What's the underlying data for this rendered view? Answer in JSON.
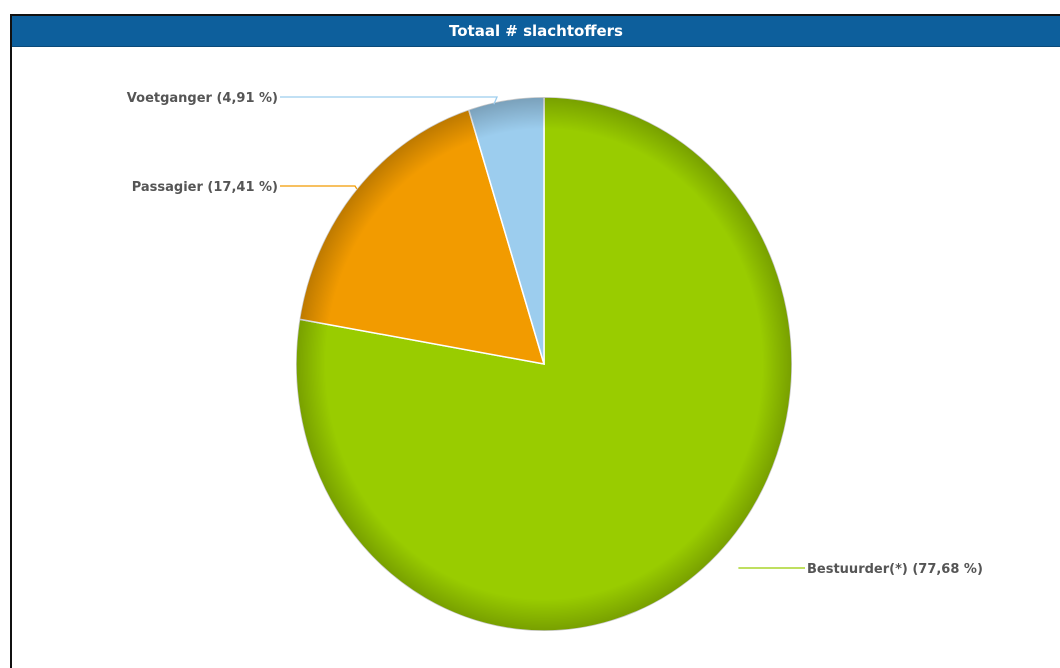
{
  "header": {
    "title": "Totaal # slachtoffers"
  },
  "chart_data": {
    "type": "pie",
    "title": "Totaal # slachtoffers",
    "slices": [
      {
        "label": "Bestuurder(*)",
        "value": 77.68,
        "display": "Bestuurder(*) (77,68 %)",
        "color": "#99cc00",
        "shade": "#6e9a00"
      },
      {
        "label": "Passagier",
        "value": 17.41,
        "display": "Passagier (17,41 %)",
        "color": "#f29b00",
        "shade": "#c47a00"
      },
      {
        "label": "Voetganger",
        "value": 4.91,
        "display": "Voetganger (4,91 %)",
        "color": "#9ccdee",
        "shade": "#7fb3d8"
      }
    ],
    "start": "top",
    "direction": "clockwise",
    "legend": "none"
  }
}
